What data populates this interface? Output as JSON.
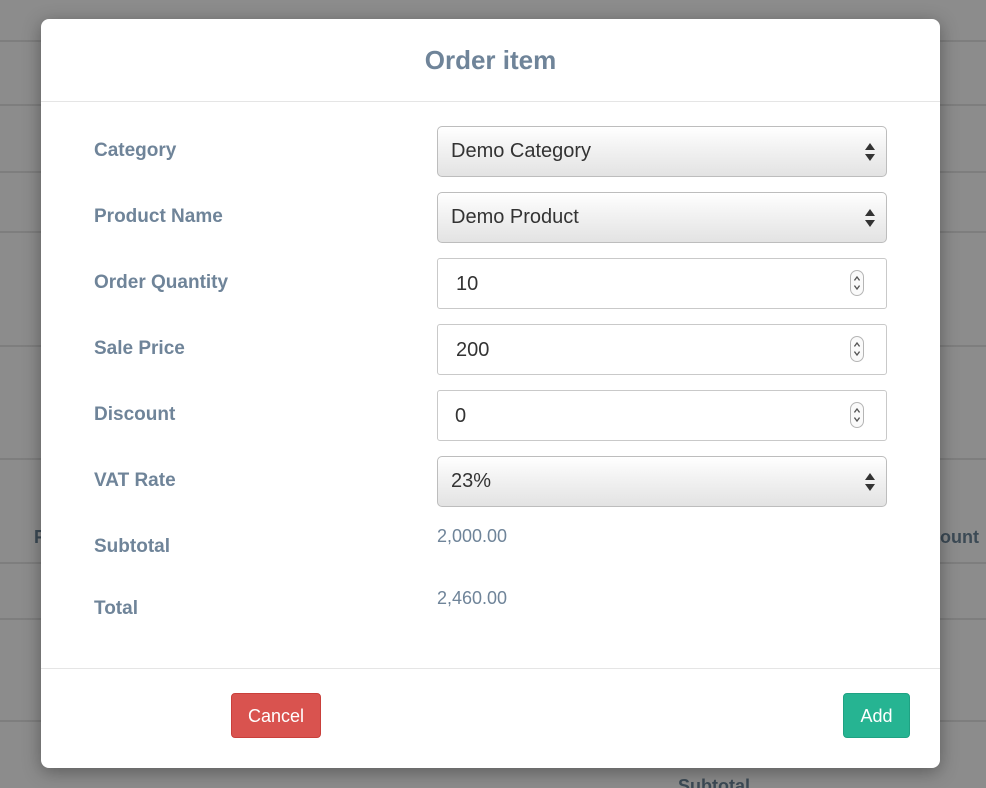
{
  "background": {
    "left_fragment": "F",
    "right_fragment": "ount",
    "bottom_fragment": "Subtotal"
  },
  "modal": {
    "title": "Order item",
    "fields": {
      "category": {
        "label": "Category",
        "value": "Demo Category"
      },
      "product_name": {
        "label": "Product Name",
        "value": "Demo Product"
      },
      "order_quantity": {
        "label": "Order Quantity",
        "value": "10"
      },
      "sale_price": {
        "label": "Sale Price",
        "value": "200"
      },
      "discount": {
        "label": "Discount",
        "value": "0"
      },
      "vat_rate": {
        "label": "VAT Rate",
        "value": "23%"
      }
    },
    "subtotal": {
      "label": "Subtotal",
      "value": "2,000.00"
    },
    "total": {
      "label": "Total",
      "value": "2,460.00"
    },
    "buttons": {
      "cancel_label": "Cancel",
      "add_label": "Add"
    }
  },
  "colors": {
    "label": "#6f8499",
    "cancel": "#d9534f",
    "add": "#26b492"
  },
  "icons": {
    "select": "select-arrows-icon",
    "number": "number-spinner-icon"
  }
}
